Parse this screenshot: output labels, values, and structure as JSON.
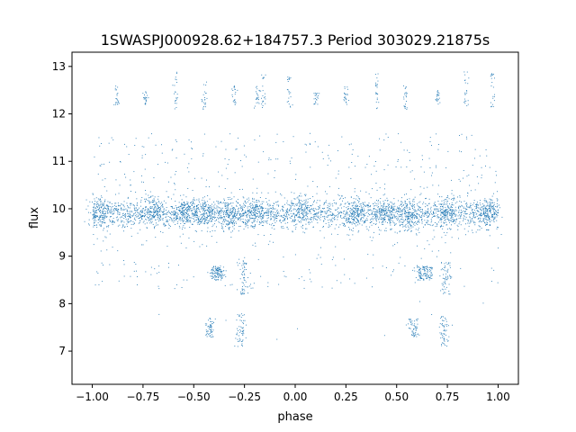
{
  "chart_data": {
    "type": "scatter",
    "title": "1SWASPJ000928.62+184757.3 Period 303029.21875s",
    "xlabel": "phase",
    "ylabel": "flux",
    "xlim": [
      -1.1,
      1.1
    ],
    "ylim": [
      6.3,
      13.3
    ],
    "xticks": [
      -1.0,
      -0.75,
      -0.5,
      -0.25,
      0.0,
      0.25,
      0.5,
      0.75,
      1.0
    ],
    "xtick_labels": [
      "−1.00",
      "−0.75",
      "−0.50",
      "−0.25",
      "0.00",
      "0.25",
      "0.50",
      "0.75",
      "1.00"
    ],
    "yticks": [
      7,
      8,
      9,
      10,
      11,
      12,
      13
    ],
    "ytick_labels": [
      "7",
      "8",
      "9",
      "10",
      "11",
      "12",
      "13"
    ],
    "grid": false,
    "legend": "none",
    "marker_color": "#1f77b4",
    "series": [
      {
        "baseline": {
          "x": [
            -1.0,
            1.0
          ],
          "y_center": 9.9,
          "y_spread": 0.15
        },
        "dense_clumps": [
          {
            "x": -0.97,
            "y": 9.95
          },
          {
            "x": -0.7,
            "y": 10.0
          },
          {
            "x": -0.55,
            "y": 9.95
          },
          {
            "x": -0.45,
            "y": 9.9
          },
          {
            "x": -0.32,
            "y": 9.9
          },
          {
            "x": -0.2,
            "y": 9.95
          },
          {
            "x": 0.03,
            "y": 10.0
          },
          {
            "x": 0.3,
            "y": 9.95
          },
          {
            "x": 0.45,
            "y": 9.9
          },
          {
            "x": 0.55,
            "y": 9.9
          },
          {
            "x": 0.75,
            "y": 9.95
          },
          {
            "x": 0.95,
            "y": 9.95
          }
        ],
        "high_streaks": [
          {
            "x": -0.88,
            "y": [
              12.2,
              12.6
            ]
          },
          {
            "x": -0.74,
            "y": [
              12.2,
              12.5
            ]
          },
          {
            "x": -0.59,
            "y": [
              12.1,
              12.9
            ]
          },
          {
            "x": -0.45,
            "y": [
              12.1,
              12.7
            ]
          },
          {
            "x": -0.3,
            "y": [
              12.2,
              12.6
            ]
          },
          {
            "x": -0.19,
            "y": [
              12.1,
              12.6
            ]
          },
          {
            "x": -0.16,
            "y": [
              12.1,
              12.9
            ]
          },
          {
            "x": -0.03,
            "y": [
              12.1,
              12.9
            ]
          },
          {
            "x": 0.1,
            "y": [
              12.2,
              12.5
            ]
          },
          {
            "x": 0.25,
            "y": [
              12.2,
              12.6
            ]
          },
          {
            "x": 0.4,
            "y": [
              12.1,
              12.9
            ]
          },
          {
            "x": 0.54,
            "y": [
              12.1,
              12.6
            ]
          },
          {
            "x": 0.7,
            "y": [
              12.2,
              12.5
            ]
          },
          {
            "x": 0.84,
            "y": [
              12.1,
              12.9
            ]
          },
          {
            "x": 0.97,
            "y": [
              12.1,
              12.9
            ]
          }
        ],
        "dips": [
          {
            "x": -0.4,
            "y": [
              8.5,
              8.8
            ]
          },
          {
            "x": -0.37,
            "y": [
              8.5,
              8.8
            ]
          },
          {
            "x": 0.62,
            "y": [
              8.5,
              8.8
            ]
          },
          {
            "x": 0.65,
            "y": [
              8.5,
              8.8
            ]
          },
          {
            "x": -0.42,
            "y": [
              7.3,
              7.7
            ]
          },
          {
            "x": 0.58,
            "y": [
              7.3,
              7.7
            ]
          },
          {
            "x": -0.27,
            "y": [
              7.1,
              7.8
            ]
          },
          {
            "x": 0.73,
            "y": [
              7.1,
              7.8
            ]
          },
          {
            "x": -0.26,
            "y": [
              8.2,
              8.9
            ]
          },
          {
            "x": 0.74,
            "y": [
              8.2,
              8.9
            ]
          }
        ]
      }
    ]
  }
}
